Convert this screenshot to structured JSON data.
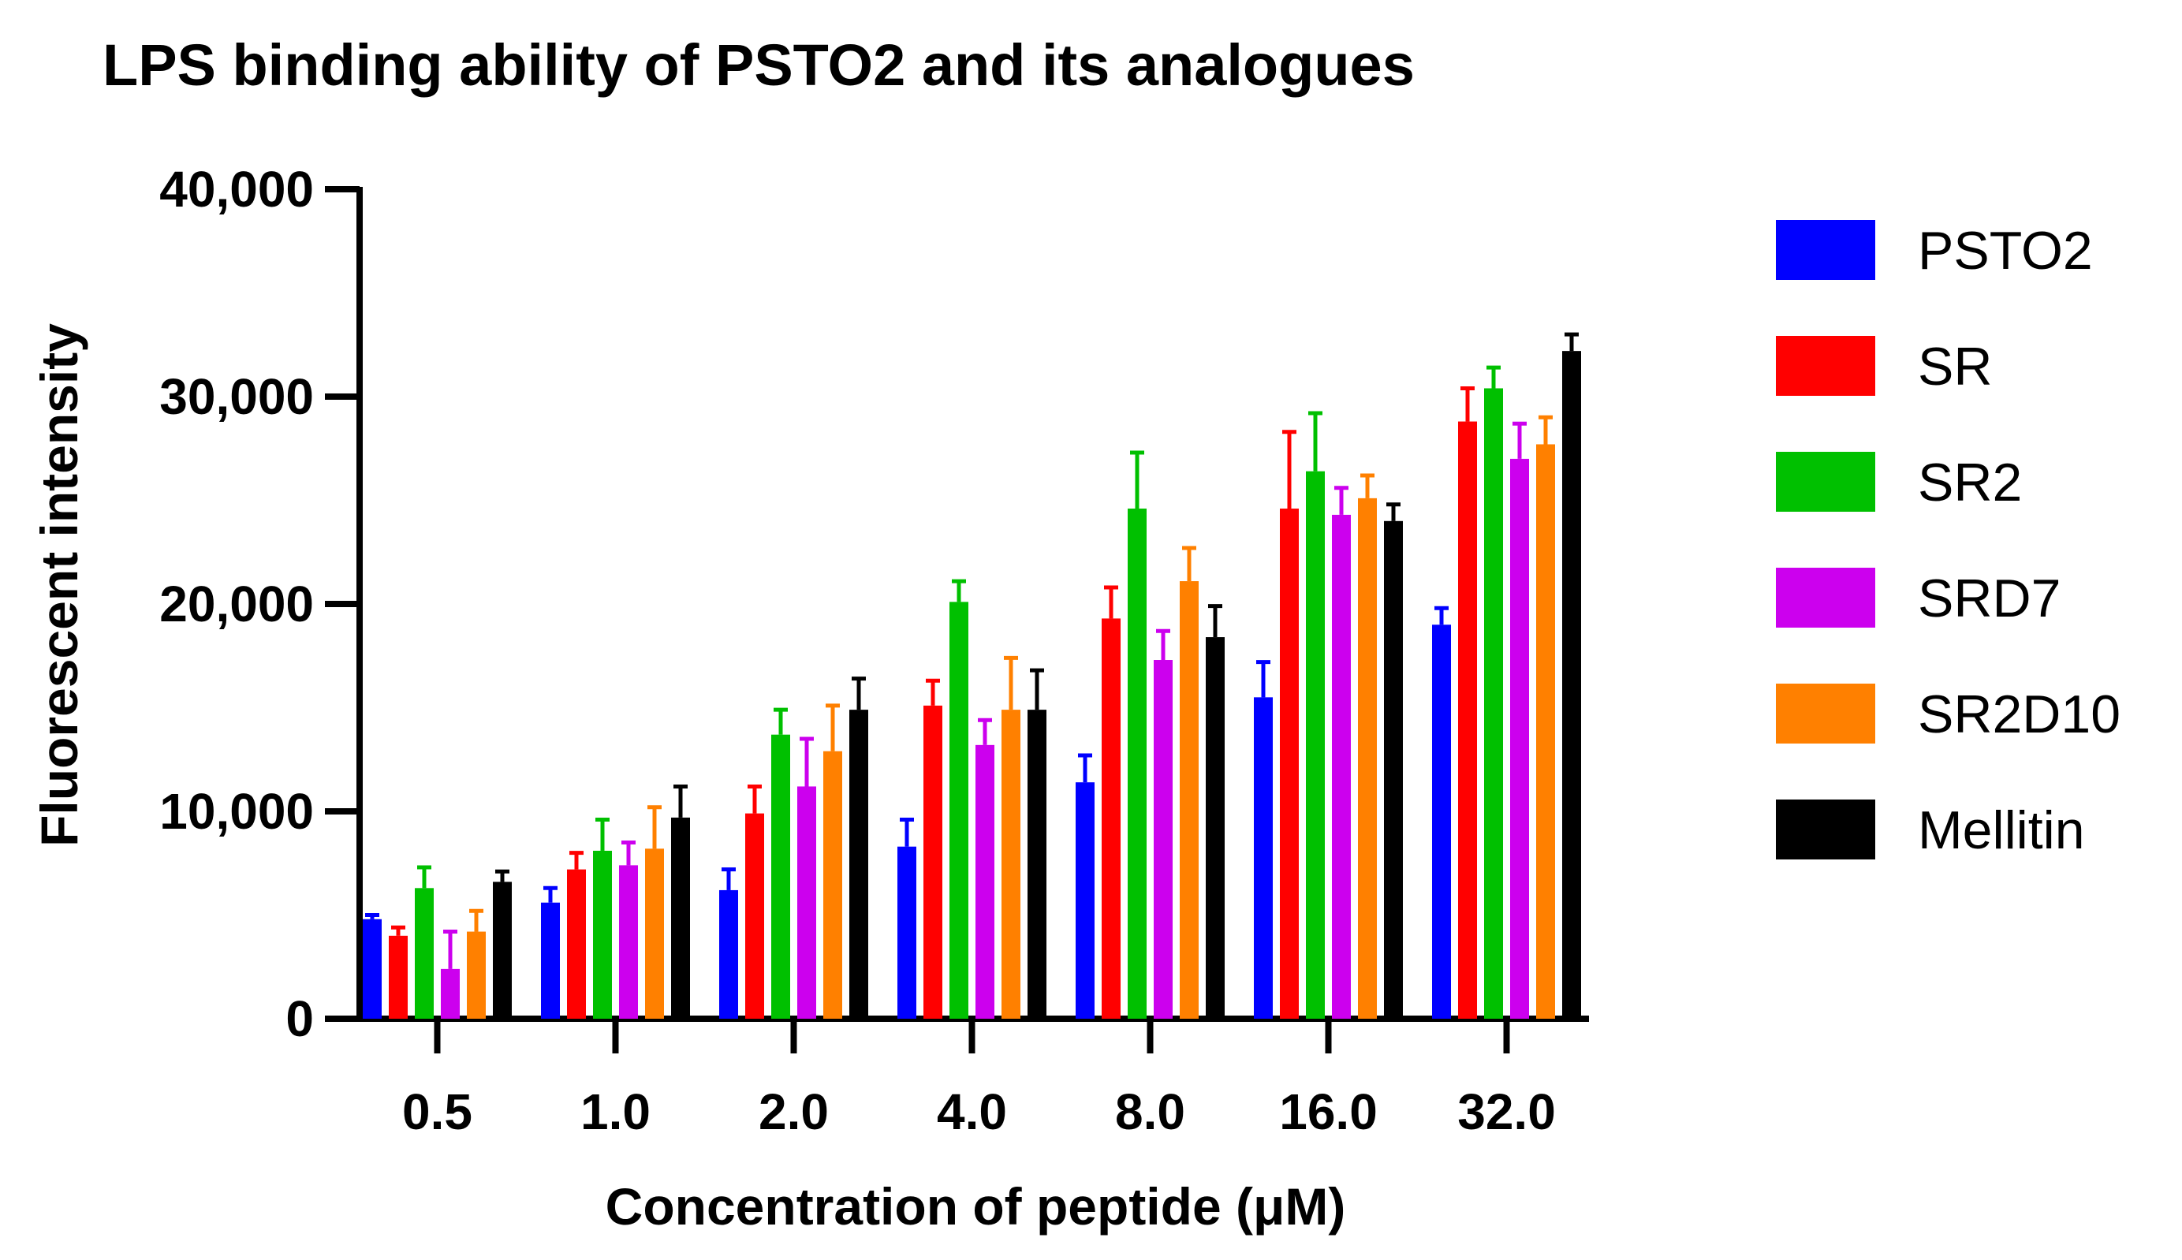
{
  "chart_data": {
    "type": "bar",
    "title": "LPS binding ability of PSTO2 and its analogues",
    "xlabel": "Concentration of peptide (μM)",
    "ylabel": "Fluorescent intensity",
    "ylim": [
      0,
      40000
    ],
    "yticks": [
      0,
      10000,
      20000,
      30000,
      40000
    ],
    "ytick_labels": [
      "0",
      "10,000",
      "20,000",
      "30,000",
      "40,000"
    ],
    "categories": [
      "0.5",
      "1.0",
      "2.0",
      "4.0",
      "8.0",
      "16.0",
      "32.0"
    ],
    "legend_position": "right",
    "series": [
      {
        "name": "PSTO2",
        "color": "#0000ff",
        "values": [
          4800,
          5600,
          6200,
          8300,
          11400,
          15500,
          19000
        ],
        "errors": [
          200,
          700,
          1000,
          1300,
          1300,
          1700,
          800
        ]
      },
      {
        "name": "SR",
        "color": "#ff0000",
        "values": [
          4000,
          7200,
          9900,
          15100,
          19300,
          24600,
          28800
        ],
        "errors": [
          400,
          800,
          1300,
          1200,
          1500,
          3700,
          1600
        ]
      },
      {
        "name": "SR2",
        "color": "#00c000",
        "values": [
          6300,
          8100,
          13700,
          20100,
          24600,
          26400,
          30400
        ],
        "errors": [
          1000,
          1500,
          1200,
          1000,
          2700,
          2800,
          1000
        ]
      },
      {
        "name": "SRD7",
        "color": "#cc00ee",
        "values": [
          2400,
          7400,
          11200,
          13200,
          17300,
          24300,
          27000
        ],
        "errors": [
          1800,
          1100,
          2300,
          1200,
          1400,
          1300,
          1700
        ]
      },
      {
        "name": "SR2D10",
        "color": "#ff8000",
        "values": [
          4200,
          8200,
          12900,
          14900,
          21100,
          25100,
          27700
        ],
        "errors": [
          1000,
          2000,
          2200,
          2500,
          1600,
          1100,
          1300
        ]
      },
      {
        "name": "Mellitin",
        "color": "#000000",
        "values": [
          6600,
          9700,
          14900,
          14900,
          18400,
          24000,
          32200
        ],
        "errors": [
          500,
          1500,
          1500,
          1900,
          1500,
          800,
          800
        ]
      }
    ]
  }
}
